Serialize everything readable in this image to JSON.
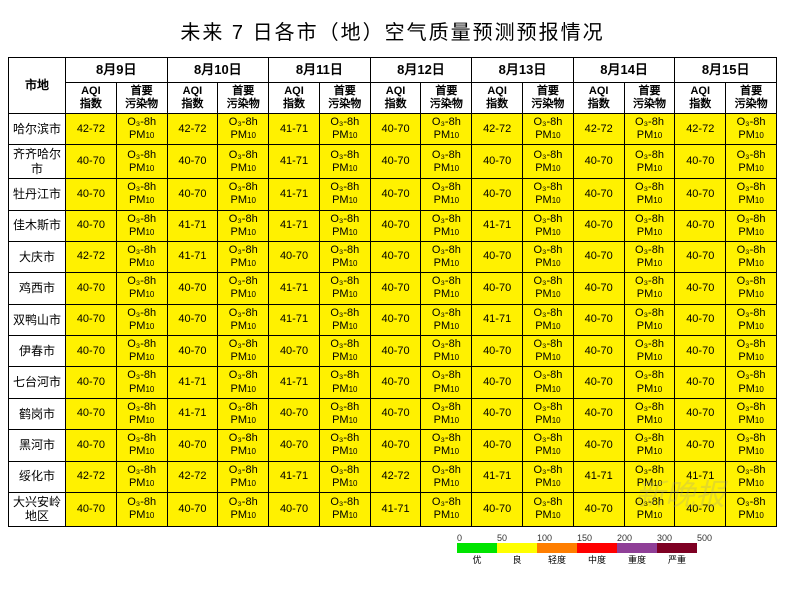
{
  "title": "未来 7 日各市（地）空气质量预测预报情况",
  "header": {
    "city_label": "市地",
    "aqi_label": "AQI\n指数",
    "pollutant_label": "首要\n污染物",
    "dates": [
      "8月9日",
      "8月10日",
      "8月11日",
      "8月12日",
      "8月13日",
      "8月14日",
      "8月15日"
    ]
  },
  "pollutant_value": {
    "line1": "O₃-8h",
    "line2": "PM",
    "sub": "10"
  },
  "cities": [
    {
      "name": "哈尔滨市",
      "aqi": [
        "42-72",
        "42-72",
        "41-71",
        "40-70",
        "42-72",
        "42-72",
        "42-72"
      ]
    },
    {
      "name": "齐齐哈尔市",
      "aqi": [
        "40-70",
        "40-70",
        "41-71",
        "40-70",
        "40-70",
        "40-70",
        "40-70"
      ]
    },
    {
      "name": "牡丹江市",
      "aqi": [
        "40-70",
        "40-70",
        "41-71",
        "40-70",
        "40-70",
        "40-70",
        "40-70"
      ]
    },
    {
      "name": "佳木斯市",
      "aqi": [
        "40-70",
        "41-71",
        "41-71",
        "40-70",
        "41-71",
        "40-70",
        "40-70"
      ]
    },
    {
      "name": "大庆市",
      "aqi": [
        "42-72",
        "41-71",
        "40-70",
        "40-70",
        "40-70",
        "40-70",
        "40-70"
      ]
    },
    {
      "name": "鸡西市",
      "aqi": [
        "40-70",
        "40-70",
        "41-71",
        "40-70",
        "40-70",
        "40-70",
        "40-70"
      ]
    },
    {
      "name": "双鸭山市",
      "aqi": [
        "40-70",
        "40-70",
        "41-71",
        "40-70",
        "41-71",
        "40-70",
        "40-70"
      ]
    },
    {
      "name": "伊春市",
      "aqi": [
        "40-70",
        "40-70",
        "40-70",
        "40-70",
        "40-70",
        "40-70",
        "40-70"
      ]
    },
    {
      "name": "七台河市",
      "aqi": [
        "40-70",
        "41-71",
        "41-71",
        "40-70",
        "40-70",
        "40-70",
        "40-70"
      ]
    },
    {
      "name": "鹤岗市",
      "aqi": [
        "40-70",
        "41-71",
        "40-70",
        "40-70",
        "40-70",
        "40-70",
        "40-70"
      ]
    },
    {
      "name": "黑河市",
      "aqi": [
        "40-70",
        "40-70",
        "40-70",
        "40-70",
        "40-70",
        "40-70",
        "40-70"
      ]
    },
    {
      "name": "绥化市",
      "aqi": [
        "42-72",
        "42-72",
        "41-71",
        "42-72",
        "41-71",
        "41-71",
        "41-71"
      ]
    },
    {
      "name": "大兴安岭地区",
      "aqi": [
        "40-70",
        "40-70",
        "40-70",
        "41-71",
        "40-70",
        "40-70",
        "40-70"
      ]
    }
  ],
  "legend": {
    "ticks": [
      "0",
      "50",
      "100",
      "150",
      "200",
      "300",
      "500"
    ],
    "colors": [
      "#00e400",
      "#ffff00",
      "#ff7e00",
      "#ff0000",
      "#8f3f97",
      "#7e0023"
    ],
    "labels": [
      "优",
      "良",
      "轻度",
      "中度",
      "重度",
      "严重"
    ]
  },
  "styling": {
    "cell_bg": "#fff100",
    "border_color": "#000000",
    "title_fontsize": 20,
    "cell_fontsize": 11
  }
}
